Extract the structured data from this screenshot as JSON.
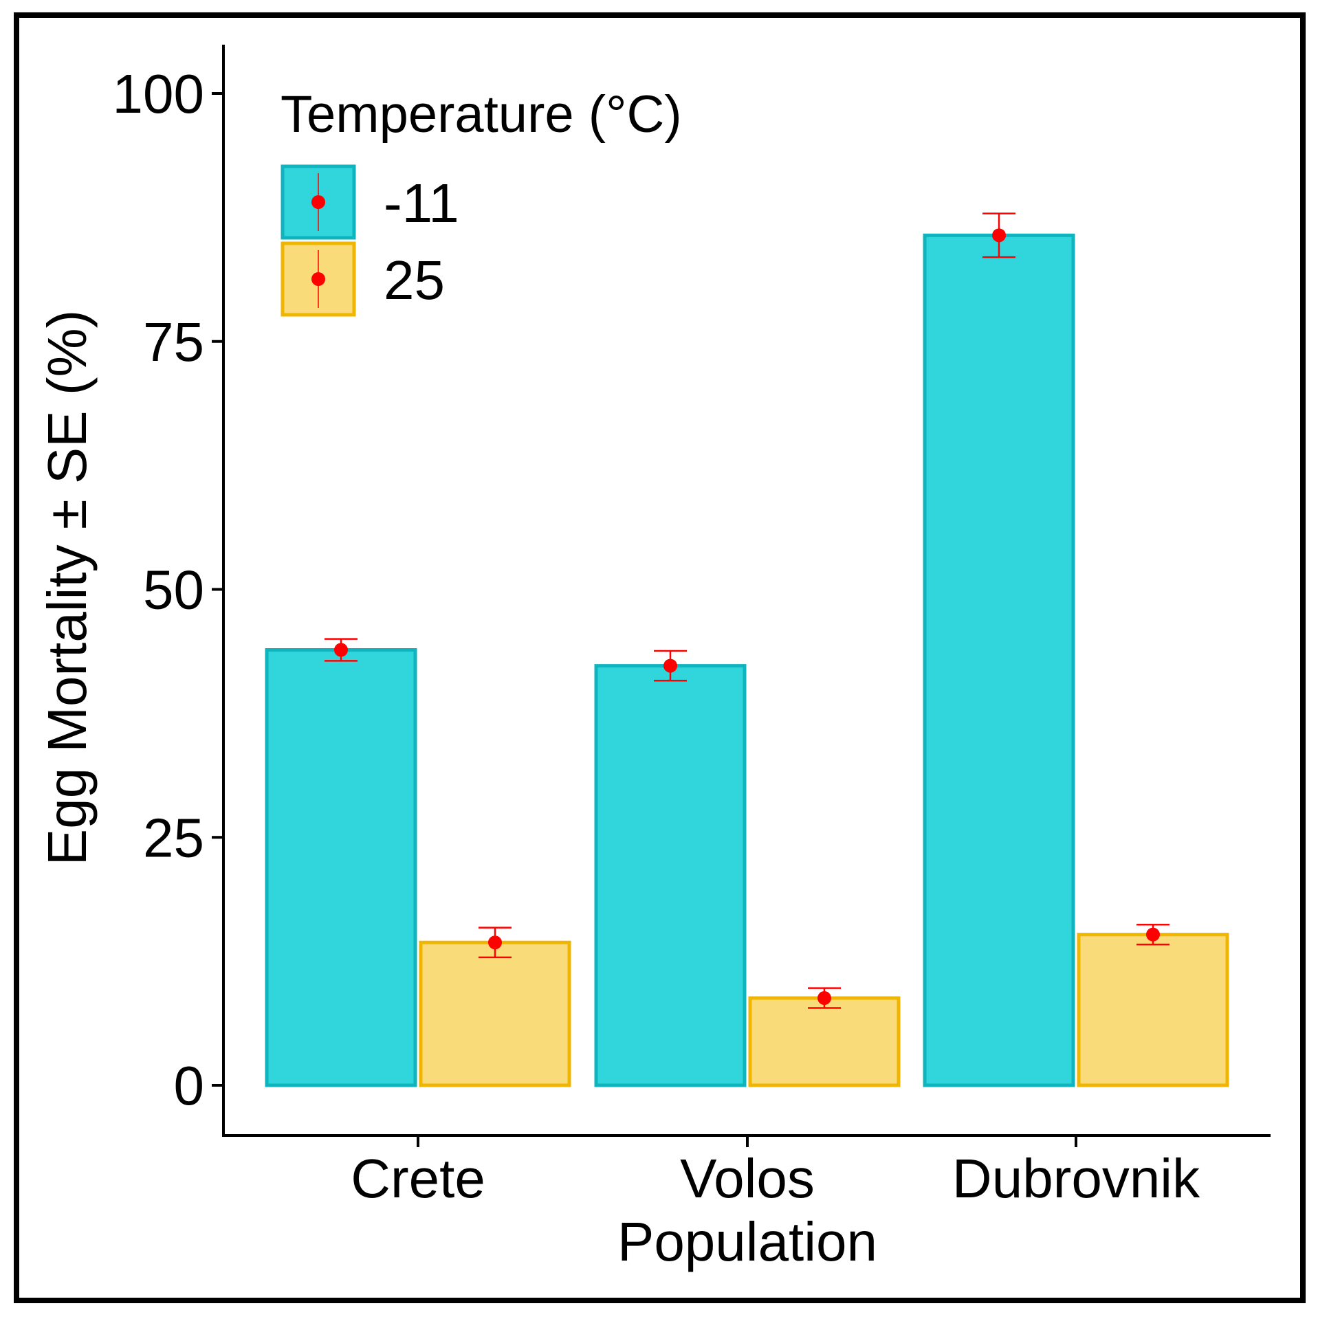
{
  "chart_data": {
    "type": "bar",
    "title": "",
    "xlabel": "Population",
    "ylabel": "Egg Mortality ± SE (%)",
    "categories": [
      "Crete",
      "Volos",
      "Dubrovnik"
    ],
    "ylim": [
      -5,
      105
    ],
    "yticks": [
      0,
      25,
      50,
      75,
      100
    ],
    "ytick_labels": [
      "0",
      "25",
      "50",
      "75",
      "100"
    ],
    "grid": false,
    "legend": {
      "title": "Temperature (°C)",
      "position": "top-left"
    },
    "series": [
      {
        "name": "-11",
        "values": [
          43.9,
          42.3,
          85.7
        ],
        "se": [
          1.1,
          1.5,
          2.2
        ],
        "fill": "#31d5dc",
        "stroke": "#10b4bf"
      },
      {
        "name": "25",
        "values": [
          14.4,
          8.8,
          15.2
        ],
        "se": [
          1.5,
          1.0,
          1.0
        ],
        "fill": "#fadb7a",
        "stroke": "#f0b500"
      }
    ],
    "errorbar_color": "#ff0000",
    "point_color": "#ff0000"
  }
}
